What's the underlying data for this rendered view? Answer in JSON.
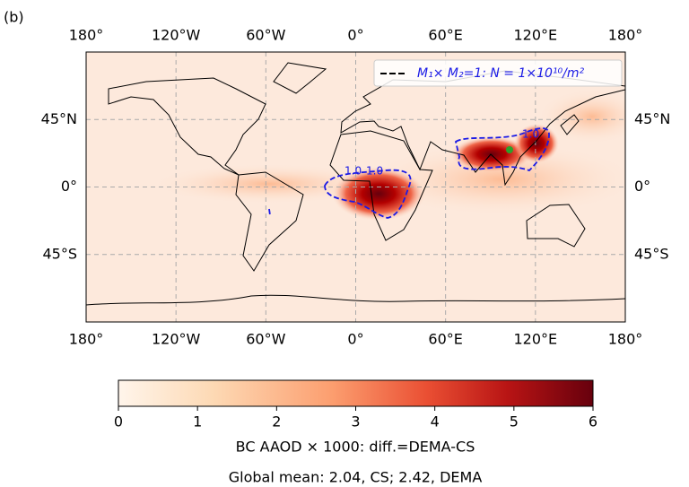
{
  "panel_label": "(b)",
  "map": {
    "lonlim": [
      -180,
      180
    ],
    "latlim": [
      -90,
      90
    ],
    "lon_ticks": [
      {
        "value": -180,
        "label": "180°"
      },
      {
        "value": -120,
        "label": "120°W"
      },
      {
        "value": -60,
        "label": "60°W"
      },
      {
        "value": 0,
        "label": "0°"
      },
      {
        "value": 60,
        "label": "60°E"
      },
      {
        "value": 120,
        "label": "120°E"
      },
      {
        "value": 180,
        "label": "180°"
      }
    ],
    "lat_ticks": [
      {
        "value": 45,
        "label": "45°N"
      },
      {
        "value": 0,
        "label": "0°"
      },
      {
        "value": -45,
        "label": "45°S"
      }
    ],
    "grid": true,
    "legend": "M₁× M₂=1: N = 1×10¹⁰/m²",
    "contour_label": "1.0"
  },
  "colorbar": {
    "lim": [
      0,
      6
    ],
    "ticks": [
      0,
      1,
      2,
      3,
      4,
      5,
      6
    ],
    "label": "BC AAOD × 1000: diff.=DEMA-CS"
  },
  "caption": "Global mean: 2.04, CS; 2.42, DEMA"
}
